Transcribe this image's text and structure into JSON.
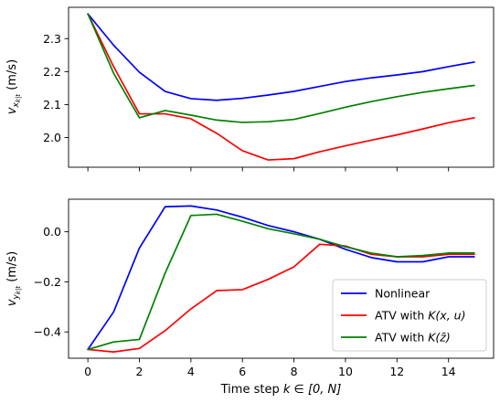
{
  "chart_data": [
    {
      "type": "line",
      "ylabel": "v_{x_{k|t}} (m/s)",
      "ylabel_main": "v",
      "ylabel_sub": "x",
      "ylabel_subsub": "k|t",
      "ylabel_unit": " (m/s)",
      "xlabel": "",
      "xlim": [
        -0.75,
        15.75
      ],
      "ylim": [
        1.91,
        2.395
      ],
      "xticks": [
        0,
        2,
        4,
        6,
        8,
        10,
        12,
        14
      ],
      "xticklabels_visible": false,
      "yticks": [
        2.0,
        2.1,
        2.2,
        2.3
      ],
      "yticklabels": [
        "2.0",
        "2.1",
        "2.2",
        "2.3"
      ],
      "grid": false,
      "x": [
        0,
        1,
        2,
        3,
        4,
        5,
        6,
        7,
        8,
        9,
        10,
        11,
        12,
        13,
        14,
        15
      ],
      "series": [
        {
          "color": "#0000ff",
          "values": [
            2.375,
            2.28,
            2.198,
            2.14,
            2.118,
            2.113,
            2.119,
            2.129,
            2.14,
            2.155,
            2.17,
            2.181,
            2.19,
            2.2,
            2.215,
            2.229
          ]
        },
        {
          "color": "#ff0000",
          "values": [
            2.375,
            2.215,
            2.072,
            2.072,
            2.057,
            2.013,
            1.96,
            1.932,
            1.936,
            1.957,
            1.975,
            1.992,
            2.008,
            2.026,
            2.045,
            2.06
          ]
        },
        {
          "color": "#008000",
          "values": [
            2.375,
            2.195,
            2.06,
            2.082,
            2.068,
            2.053,
            2.046,
            2.048,
            2.055,
            2.073,
            2.092,
            2.109,
            2.124,
            2.137,
            2.148,
            2.158
          ]
        }
      ]
    },
    {
      "type": "line",
      "ylabel": "v_{y_{k|t}} (m/s)",
      "ylabel_main": "v",
      "ylabel_sub": "y",
      "ylabel_subsub": "k|t",
      "ylabel_unit": " (m/s)",
      "xlabel": "Time step k ∈ [0, N]",
      "xlabel_text": "Time step ",
      "xlabel_math": "k ∈ [0, N]",
      "xlim": [
        -0.75,
        15.75
      ],
      "ylim": [
        -0.505,
        0.13
      ],
      "xticks": [
        0,
        2,
        4,
        6,
        8,
        10,
        12,
        14
      ],
      "xticklabels": [
        "0",
        "2",
        "4",
        "6",
        "8",
        "10",
        "12",
        "14"
      ],
      "yticks": [
        -0.4,
        -0.2,
        0.0
      ],
      "yticklabels": [
        "−0.4",
        "−0.2",
        "0.0"
      ],
      "grid": false,
      "legend_position": "lower-right",
      "x": [
        0,
        1,
        2,
        3,
        4,
        5,
        6,
        7,
        8,
        9,
        10,
        11,
        12,
        13,
        14,
        15
      ],
      "series": [
        {
          "name": "Nonlinear",
          "color": "#0000ff",
          "values": [
            -0.47,
            -0.32,
            -0.065,
            0.1,
            0.103,
            0.087,
            0.058,
            0.025,
            0.0,
            -0.03,
            -0.07,
            -0.103,
            -0.12,
            -0.12,
            -0.1,
            -0.1
          ]
        },
        {
          "name": "ATV with K(x, u)",
          "name_text": "ATV with ",
          "name_math": "K(x, u)",
          "color": "#ff0000",
          "values": [
            -0.47,
            -0.48,
            -0.466,
            -0.395,
            -0.308,
            -0.235,
            -0.231,
            -0.19,
            -0.14,
            -0.05,
            -0.057,
            -0.09,
            -0.1,
            -0.1,
            -0.09,
            -0.09
          ]
        },
        {
          "name": "ATV with K(z̄)",
          "name_text": "ATV with ",
          "name_math": "K(z̄)",
          "color": "#008000",
          "values": [
            -0.47,
            -0.44,
            -0.43,
            -0.165,
            0.065,
            0.07,
            0.042,
            0.012,
            -0.008,
            -0.03,
            -0.06,
            -0.085,
            -0.1,
            -0.095,
            -0.085,
            -0.085
          ]
        }
      ]
    }
  ]
}
